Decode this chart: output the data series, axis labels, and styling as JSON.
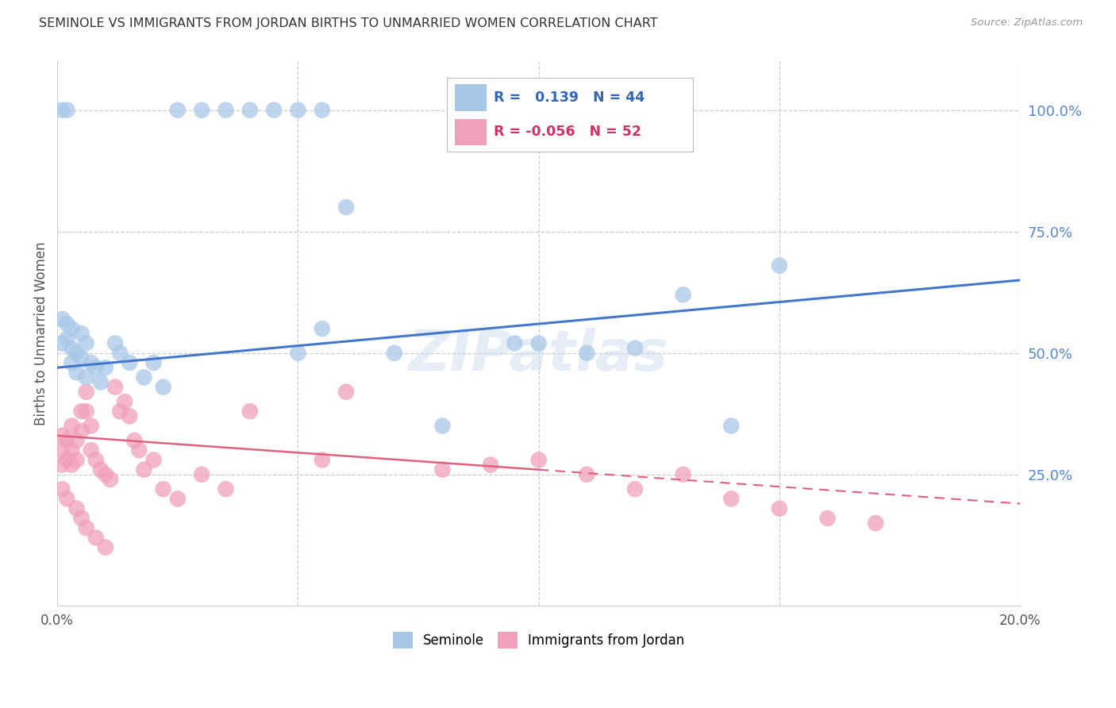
{
  "title": "SEMINOLE VS IMMIGRANTS FROM JORDAN BIRTHS TO UNMARRIED WOMEN CORRELATION CHART",
  "source": "Source: ZipAtlas.com",
  "ylabel": "Births to Unmarried Women",
  "right_yticks": [
    "100.0%",
    "75.0%",
    "50.0%",
    "25.0%"
  ],
  "right_ytick_vals": [
    1.0,
    0.75,
    0.5,
    0.25
  ],
  "seminole_color": "#a8c8e8",
  "jordan_color": "#f0a0b8",
  "trendline_blue_color": "#4477cc",
  "trendline_pink_color": "#e06080",
  "seminole_x": [
    0.001,
    0.001,
    0.002,
    0.002,
    0.003,
    0.003,
    0.003,
    0.004,
    0.004,
    0.005,
    0.005,
    0.006,
    0.006,
    0.007,
    0.008,
    0.009,
    0.01,
    0.012,
    0.013,
    0.015,
    0.018,
    0.02,
    0.022,
    0.05,
    0.055,
    0.07,
    0.08,
    0.095,
    0.1,
    0.11,
    0.12,
    0.13,
    0.14,
    0.15,
    0.001,
    0.002,
    0.025,
    0.03,
    0.035,
    0.04,
    0.045,
    0.05,
    0.055,
    0.06
  ],
  "seminole_y": [
    0.57,
    0.52,
    0.56,
    0.53,
    0.55,
    0.51,
    0.48,
    0.5,
    0.46,
    0.54,
    0.49,
    0.52,
    0.45,
    0.48,
    0.47,
    0.44,
    0.47,
    0.52,
    0.5,
    0.48,
    0.45,
    0.48,
    0.43,
    0.5,
    0.55,
    0.5,
    0.35,
    0.52,
    0.52,
    0.5,
    0.51,
    0.62,
    0.35,
    0.68,
    1.0,
    1.0,
    1.0,
    1.0,
    1.0,
    1.0,
    1.0,
    1.0,
    1.0,
    0.8
  ],
  "jordan_x": [
    0.001,
    0.001,
    0.001,
    0.002,
    0.002,
    0.003,
    0.003,
    0.003,
    0.004,
    0.004,
    0.005,
    0.005,
    0.006,
    0.006,
    0.007,
    0.007,
    0.008,
    0.009,
    0.01,
    0.011,
    0.012,
    0.013,
    0.014,
    0.015,
    0.016,
    0.017,
    0.018,
    0.02,
    0.022,
    0.025,
    0.03,
    0.035,
    0.04,
    0.055,
    0.06,
    0.08,
    0.09,
    0.1,
    0.11,
    0.12,
    0.13,
    0.14,
    0.15,
    0.16,
    0.17,
    0.001,
    0.002,
    0.004,
    0.005,
    0.006,
    0.008,
    0.01
  ],
  "jordan_y": [
    0.33,
    0.3,
    0.27,
    0.32,
    0.28,
    0.35,
    0.3,
    0.27,
    0.32,
    0.28,
    0.38,
    0.34,
    0.42,
    0.38,
    0.35,
    0.3,
    0.28,
    0.26,
    0.25,
    0.24,
    0.43,
    0.38,
    0.4,
    0.37,
    0.32,
    0.3,
    0.26,
    0.28,
    0.22,
    0.2,
    0.25,
    0.22,
    0.38,
    0.28,
    0.42,
    0.26,
    0.27,
    0.28,
    0.25,
    0.22,
    0.25,
    0.2,
    0.18,
    0.16,
    0.15,
    0.22,
    0.2,
    0.18,
    0.16,
    0.14,
    0.12,
    0.1
  ],
  "watermark": "ZIPatlas",
  "xlim": [
    0.0,
    0.2
  ],
  "ylim": [
    -0.02,
    1.1
  ],
  "trendline_blue_x0": 0.0,
  "trendline_blue_y0": 0.47,
  "trendline_blue_x1": 0.2,
  "trendline_blue_y1": 0.65,
  "trendline_pink_x0": 0.0,
  "trendline_pink_y0": 0.33,
  "trendline_pink_x1": 0.2,
  "trendline_pink_y1": 0.19,
  "trendline_pink_solid_end": 0.1
}
